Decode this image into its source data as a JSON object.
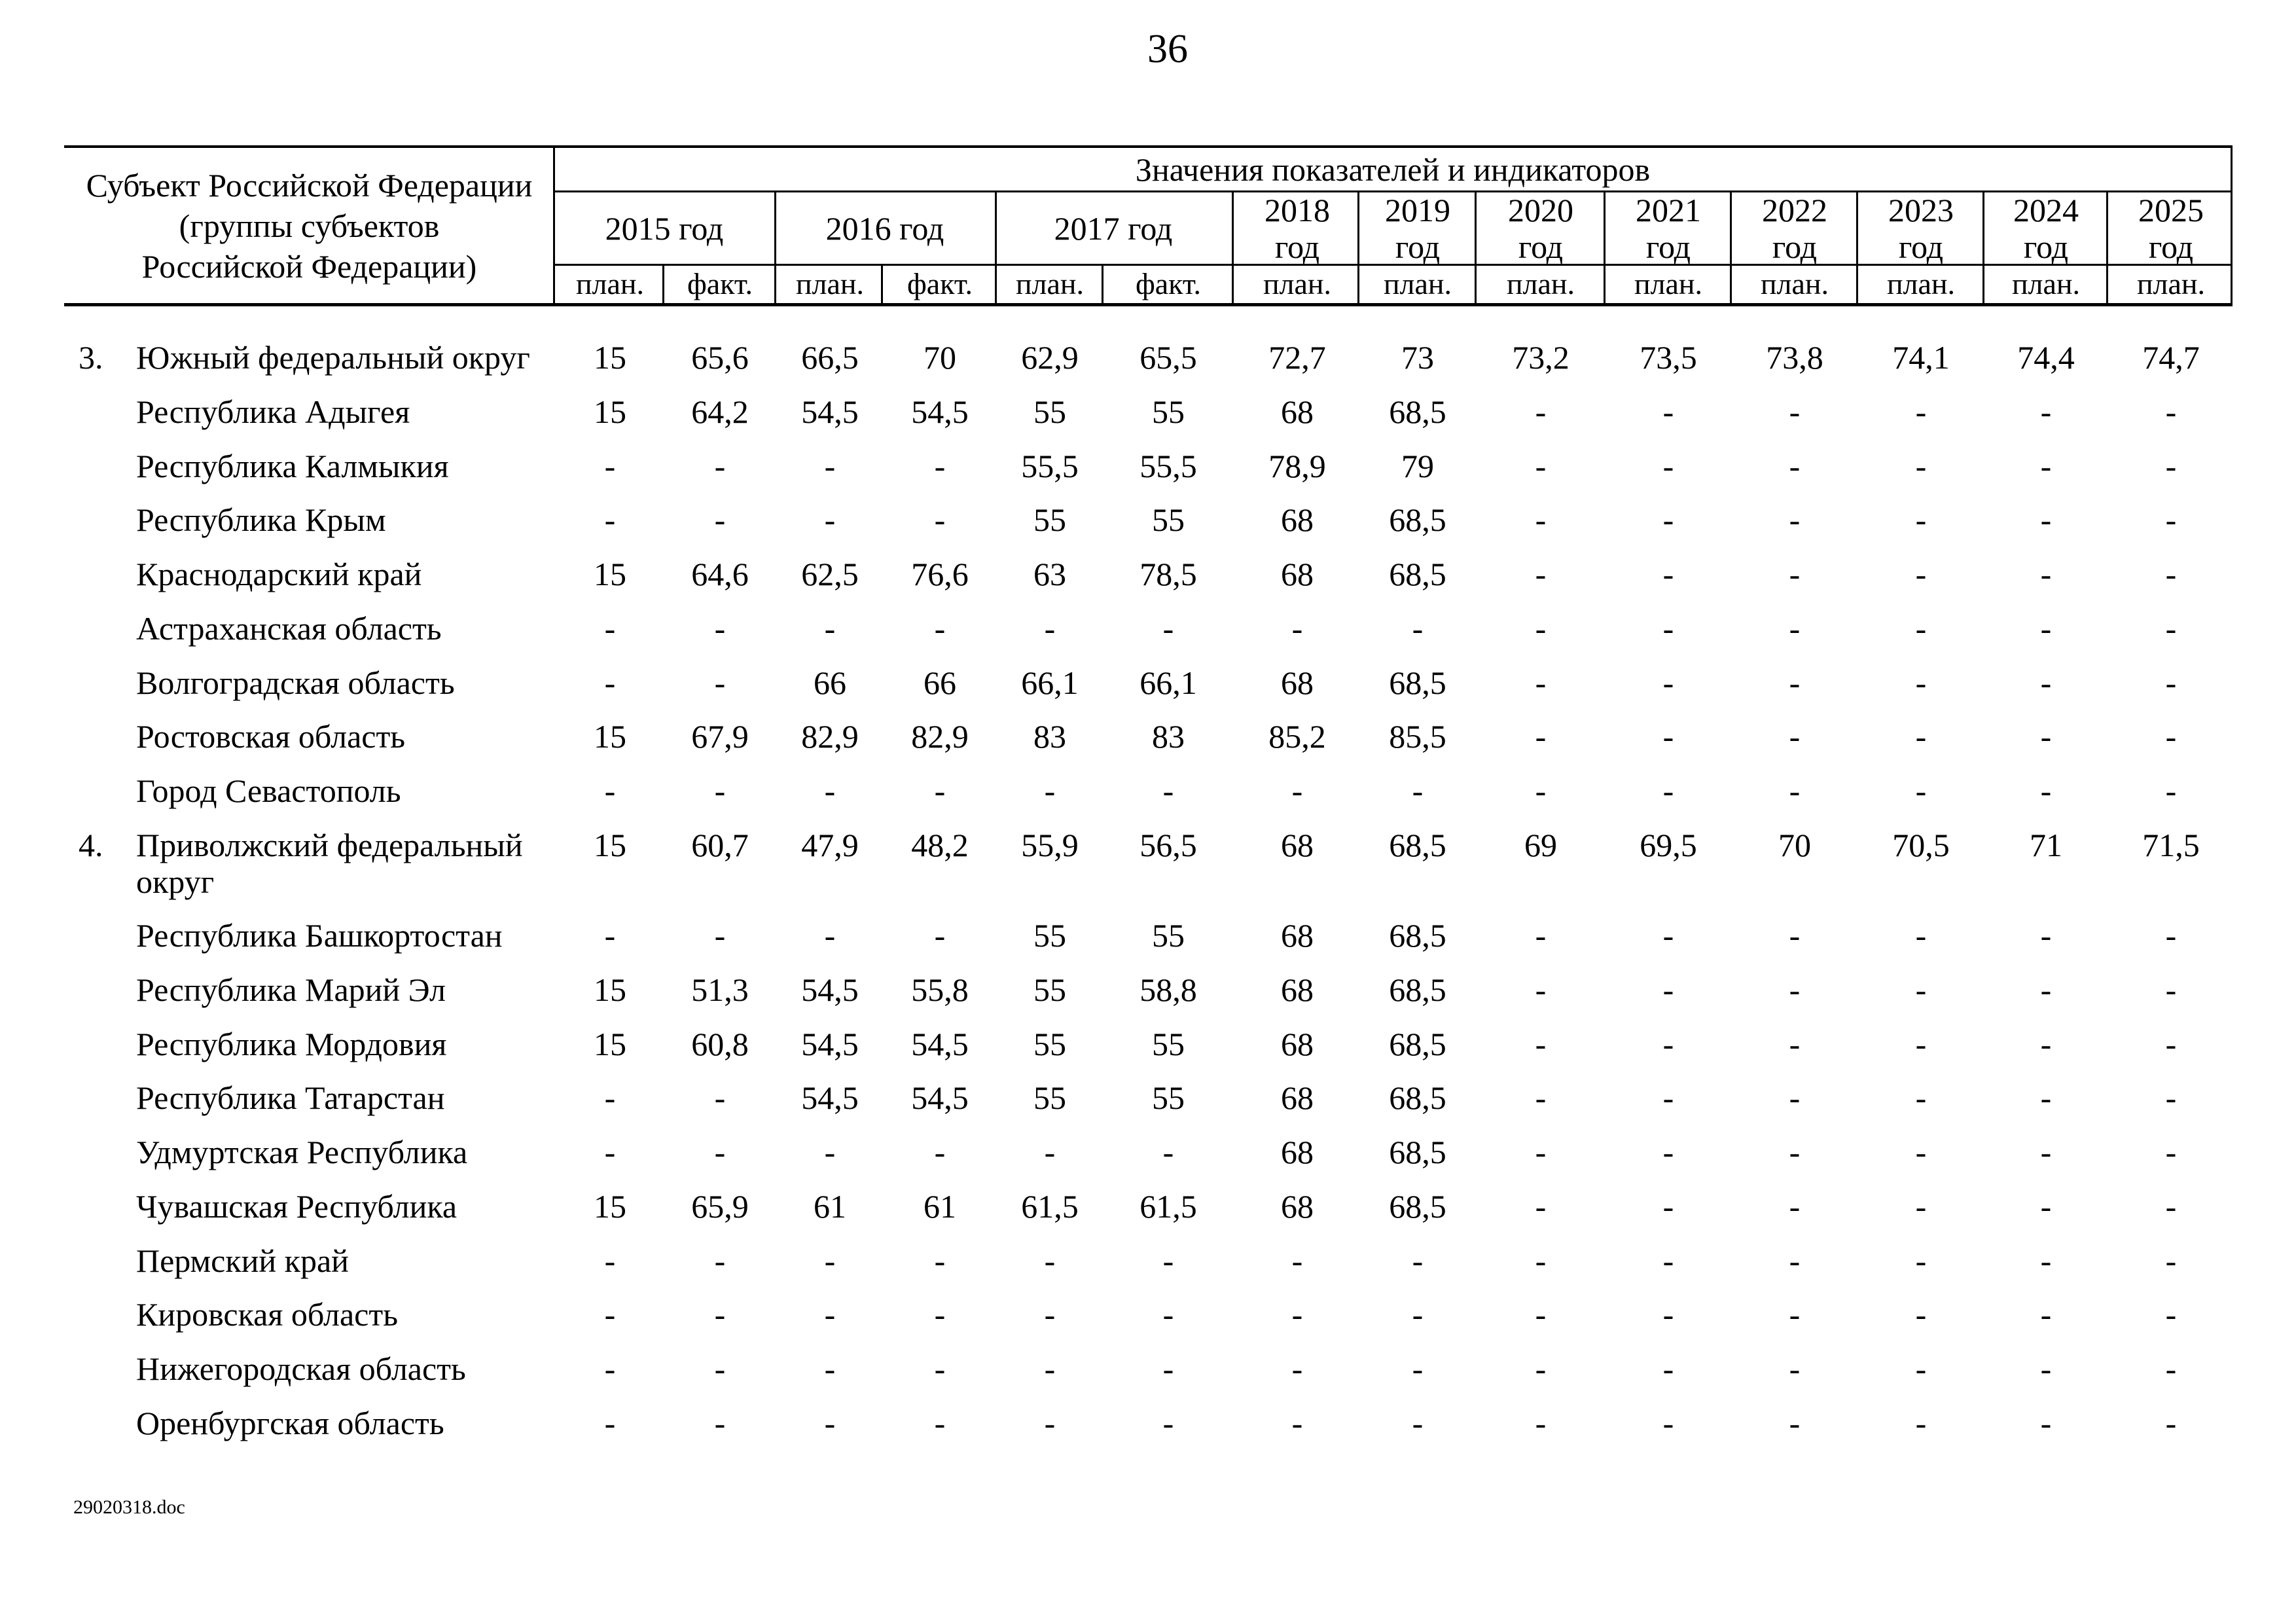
{
  "page": {
    "number": "36",
    "footer": "29020318.doc"
  },
  "table": {
    "corner_header": [
      "Субъект Российской Федерации",
      "(группы субъектов",
      "Российской Федерации)"
    ],
    "values_header": "Значения показателей и индикаторов",
    "year_headers": [
      "2015 год",
      "2016 год",
      "2017 год",
      "2018 год",
      "2019 год",
      "2020 год",
      "2021 год",
      "2022 год",
      "2023 год",
      "2024 год",
      "2025 год"
    ],
    "sub_headers": [
      "план.",
      "факт.",
      "план.",
      "факт.",
      "план.",
      "факт.",
      "план.",
      "план.",
      "план.",
      "план.",
      "план.",
      "план.",
      "план.",
      "план."
    ],
    "rows": [
      {
        "num": "3.",
        "name": "Южный федеральный округ",
        "values": [
          "15",
          "65,6",
          "66,5",
          "70",
          "62,9",
          "65,5",
          "72,7",
          "73",
          "73,2",
          "73,5",
          "73,8",
          "74,1",
          "74,4",
          "74,7"
        ]
      },
      {
        "num": "",
        "name": "Республика Адыгея",
        "values": [
          "15",
          "64,2",
          "54,5",
          "54,5",
          "55",
          "55",
          "68",
          "68,5",
          "-",
          "-",
          "-",
          "-",
          "-",
          "-"
        ]
      },
      {
        "num": "",
        "name": "Республика Калмыкия",
        "values": [
          "-",
          "-",
          "-",
          "-",
          "55,5",
          "55,5",
          "78,9",
          "79",
          "-",
          "-",
          "-",
          "-",
          "-",
          "-"
        ]
      },
      {
        "num": "",
        "name": "Республика Крым",
        "values": [
          "-",
          "-",
          "-",
          "-",
          "55",
          "55",
          "68",
          "68,5",
          "-",
          "-",
          "-",
          "-",
          "-",
          "-"
        ]
      },
      {
        "num": "",
        "name": "Краснодарский край",
        "values": [
          "15",
          "64,6",
          "62,5",
          "76,6",
          "63",
          "78,5",
          "68",
          "68,5",
          "-",
          "-",
          "-",
          "-",
          "-",
          "-"
        ]
      },
      {
        "num": "",
        "name": "Астраханская область",
        "values": [
          "-",
          "-",
          "-",
          "-",
          "-",
          "-",
          "-",
          "-",
          "-",
          "-",
          "-",
          "-",
          "-",
          "-"
        ]
      },
      {
        "num": "",
        "name": "Волгоградская область",
        "values": [
          "-",
          "-",
          "66",
          "66",
          "66,1",
          "66,1",
          "68",
          "68,5",
          "-",
          "-",
          "-",
          "-",
          "-",
          "-"
        ]
      },
      {
        "num": "",
        "name": "Ростовская область",
        "values": [
          "15",
          "67,9",
          "82,9",
          "82,9",
          "83",
          "83",
          "85,2",
          "85,5",
          "-",
          "-",
          "-",
          "-",
          "-",
          "-"
        ]
      },
      {
        "num": "",
        "name": "Город Севастополь",
        "values": [
          "-",
          "-",
          "-",
          "-",
          "-",
          "-",
          "-",
          "-",
          "-",
          "-",
          "-",
          "-",
          "-",
          "-"
        ]
      },
      {
        "num": "4.",
        "name": "Приволжский федеральный округ",
        "values": [
          "15",
          "60,7",
          "47,9",
          "48,2",
          "55,9",
          "56,5",
          "68",
          "68,5",
          "69",
          "69,5",
          "70",
          "70,5",
          "71",
          "71,5"
        ]
      },
      {
        "num": "",
        "name": "Республика Башкортостан",
        "values": [
          "-",
          "-",
          "-",
          "-",
          "55",
          "55",
          "68",
          "68,5",
          "-",
          "-",
          "-",
          "-",
          "-",
          "-"
        ]
      },
      {
        "num": "",
        "name": "Республика Марий Эл",
        "values": [
          "15",
          "51,3",
          "54,5",
          "55,8",
          "55",
          "58,8",
          "68",
          "68,5",
          "-",
          "-",
          "-",
          "-",
          "-",
          "-"
        ]
      },
      {
        "num": "",
        "name": "Республика Мордовия",
        "values": [
          "15",
          "60,8",
          "54,5",
          "54,5",
          "55",
          "55",
          "68",
          "68,5",
          "-",
          "-",
          "-",
          "-",
          "-",
          "-"
        ]
      },
      {
        "num": "",
        "name": "Республика Татарстан",
        "values": [
          "-",
          "-",
          "54,5",
          "54,5",
          "55",
          "55",
          "68",
          "68,5",
          "-",
          "-",
          "-",
          "-",
          "-",
          "-"
        ]
      },
      {
        "num": "",
        "name": "Удмуртская Республика",
        "values": [
          "-",
          "-",
          "-",
          "-",
          "-",
          "-",
          "68",
          "68,5",
          "-",
          "-",
          "-",
          "-",
          "-",
          "-"
        ]
      },
      {
        "num": "",
        "name": "Чувашская Республика",
        "values": [
          "15",
          "65,9",
          "61",
          "61",
          "61,5",
          "61,5",
          "68",
          "68,5",
          "-",
          "-",
          "-",
          "-",
          "-",
          "-"
        ]
      },
      {
        "num": "",
        "name": "Пермский край",
        "values": [
          "-",
          "-",
          "-",
          "-",
          "-",
          "-",
          "-",
          "-",
          "-",
          "-",
          "-",
          "-",
          "-",
          "-"
        ]
      },
      {
        "num": "",
        "name": "Кировская область",
        "values": [
          "-",
          "-",
          "-",
          "-",
          "-",
          "-",
          "-",
          "-",
          "-",
          "-",
          "-",
          "-",
          "-",
          "-"
        ]
      },
      {
        "num": "",
        "name": "Нижегородская область",
        "values": [
          "-",
          "-",
          "-",
          "-",
          "-",
          "-",
          "-",
          "-",
          "-",
          "-",
          "-",
          "-",
          "-",
          "-"
        ]
      },
      {
        "num": "",
        "name": "Оренбургская область",
        "values": [
          "-",
          "-",
          "-",
          "-",
          "-",
          "-",
          "-",
          "-",
          "-",
          "-",
          "-",
          "-",
          "-",
          "-"
        ]
      }
    ]
  }
}
